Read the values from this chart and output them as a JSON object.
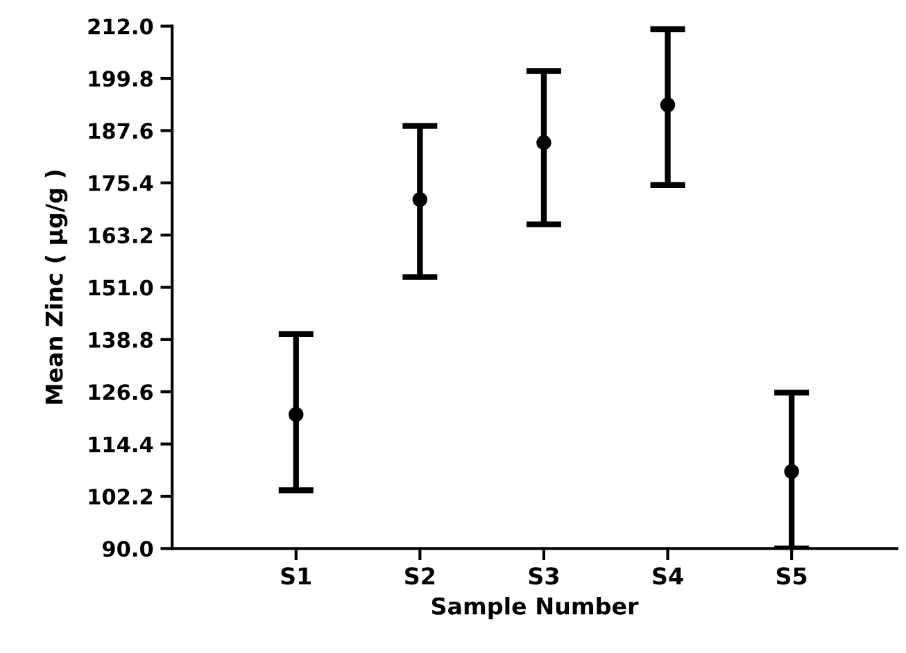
{
  "chart_data": {
    "type": "scatter",
    "xlabel": "Sample Number",
    "ylabel": "Mean Zinc ( μg/g )",
    "categories": [
      "S1",
      "S2",
      "S3",
      "S4",
      "S5"
    ],
    "values": [
      121.3,
      171.5,
      184.8,
      193.6,
      108.0
    ],
    "errors": [
      [
        103.6,
        140.1
      ],
      [
        153.4,
        188.7
      ],
      [
        165.7,
        201.5
      ],
      [
        174.9,
        211.3
      ],
      [
        90.0,
        126.4
      ]
    ],
    "color": "#000000",
    "marker": "circle",
    "grid": false,
    "legend": false,
    "ylim": [
      90.0,
      212.0
    ],
    "yticks": [
      {
        "value": 90,
        "label": "90.0"
      },
      102.2,
      114.4,
      126.6,
      138.8,
      {
        "value": 151,
        "label": "151.0"
      },
      163.2,
      175.4,
      187.6,
      199.8,
      {
        "value": 212,
        "label": "212.0"
      }
    ]
  }
}
